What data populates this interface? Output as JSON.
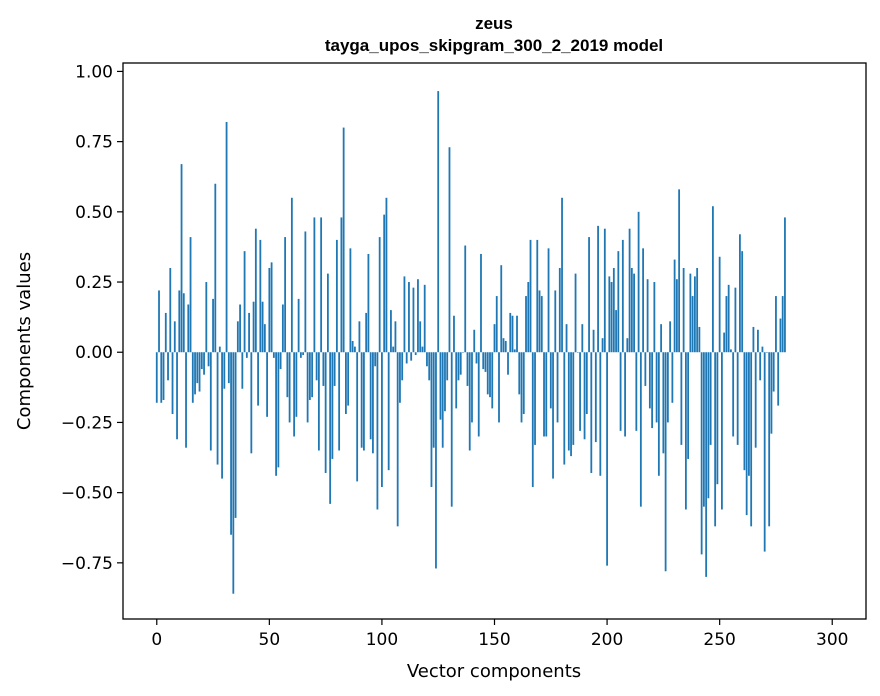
{
  "chart_data": {
    "type": "bar",
    "title": "zeus",
    "subtitle": "tayga_upos_skipgram_300_2_2019 model",
    "xlabel": "Vector components",
    "ylabel": "Components values",
    "xlim": [
      -15,
      315
    ],
    "ylim": [
      -0.95,
      1.03
    ],
    "xticks": [
      0,
      50,
      100,
      150,
      200,
      250,
      300
    ],
    "xtick_labels": [
      "0",
      "50",
      "100",
      "150",
      "200",
      "250",
      "300"
    ],
    "yticks": [
      -0.75,
      -0.5,
      -0.25,
      0.0,
      0.25,
      0.5,
      0.75,
      1.0
    ],
    "ytick_labels": [
      "−0.75",
      "−0.50",
      "−0.25",
      "0.00",
      "0.25",
      "0.50",
      "0.75",
      "1.00"
    ],
    "grid": false,
    "bar_color": "#1f77b4",
    "values": [
      -0.18,
      0.22,
      -0.18,
      -0.17,
      0.14,
      -0.1,
      0.3,
      -0.22,
      0.11,
      -0.31,
      0.22,
      0.67,
      0.21,
      -0.34,
      0.17,
      0.41,
      -0.18,
      -0.15,
      -0.11,
      -0.14,
      -0.06,
      -0.08,
      0.25,
      -0.05,
      -0.35,
      0.19,
      0.6,
      -0.4,
      0.02,
      -0.45,
      -0.13,
      0.82,
      -0.11,
      -0.65,
      -0.86,
      -0.59,
      0.11,
      0.17,
      -0.13,
      0.36,
      -0.02,
      0.14,
      -0.36,
      0.18,
      0.44,
      -0.19,
      0.4,
      0.18,
      0.1,
      -0.23,
      0.3,
      0.32,
      -0.02,
      -0.44,
      -0.41,
      -0.06,
      0.17,
      0.41,
      -0.16,
      -0.25,
      0.55,
      -0.3,
      -0.23,
      0.19,
      -0.02,
      -0.01,
      0.43,
      -0.25,
      -0.17,
      -0.16,
      0.48,
      -0.1,
      -0.35,
      0.48,
      -0.12,
      -0.43,
      0.28,
      -0.54,
      -0.38,
      -0.12,
      0.4,
      -0.35,
      0.48,
      0.8,
      -0.22,
      -0.19,
      0.37,
      0.04,
      0.02,
      -0.46,
      0.11,
      -0.34,
      -0.35,
      0.14,
      0.35,
      -0.31,
      -0.36,
      -0.05,
      -0.56,
      0.41,
      -0.48,
      0.49,
      0.55,
      -0.42,
      0.15,
      0.02,
      0.11,
      -0.62,
      -0.18,
      -0.1,
      0.27,
      -0.04,
      0.25,
      -0.03,
      0.23,
      -0.01,
      0.26,
      0.11,
      0.02,
      0.24,
      -0.05,
      -0.1,
      -0.48,
      -0.34,
      -0.77,
      0.93,
      -0.24,
      -0.34,
      -0.21,
      -0.1,
      0.73,
      -0.55,
      0.13,
      -0.2,
      -0.1,
      -0.08,
      0.0,
      0.38,
      -0.12,
      -0.35,
      -0.25,
      0.08,
      -0.04,
      -0.3,
      0.35,
      -0.06,
      -0.07,
      -0.15,
      -0.16,
      -0.2,
      0.1,
      0.2,
      -0.25,
      0.31,
      0.05,
      0.04,
      -0.08,
      0.14,
      0.13,
      0.01,
      0.13,
      -0.15,
      -0.25,
      -0.22,
      0.2,
      0.25,
      0.4,
      -0.48,
      -0.33,
      0.4,
      0.22,
      0.2,
      -0.3,
      -0.3,
      0.37,
      -0.2,
      -0.45,
      0.22,
      -0.25,
      0.3,
      0.55,
      -0.4,
      0.1,
      -0.35,
      -0.37,
      -0.33,
      0.28,
      0.0,
      -0.28,
      0.1,
      -0.31,
      -0.22,
      0.41,
      -0.43,
      0.08,
      -0.32,
      0.45,
      -0.44,
      0.05,
      0.44,
      -0.76,
      0.27,
      0.25,
      0.3,
      0.15,
      0.36,
      -0.28,
      0.4,
      -0.3,
      0.05,
      0.44,
      0.3,
      0.28,
      -0.28,
      0.5,
      -0.55,
      0.37,
      -0.12,
      0.26,
      -0.2,
      -0.27,
      0.25,
      -0.25,
      -0.44,
      0.1,
      -0.36,
      -0.78,
      -0.25,
      0.11,
      -0.18,
      0.33,
      0.26,
      0.58,
      -0.33,
      0.3,
      -0.56,
      -0.38,
      0.28,
      0.2,
      0.27,
      0.3,
      0.09,
      -0.72,
      -0.55,
      -0.8,
      -0.52,
      -0.33,
      0.52,
      -0.62,
      -0.47,
      0.34,
      -0.56,
      0.07,
      0.2,
      0.24,
      0.01,
      -0.3,
      0.23,
      -0.33,
      0.42,
      0.36,
      -0.42,
      -0.58,
      -0.44,
      -0.62,
      0.09,
      -0.34,
      0.08,
      -0.1,
      0.02,
      -0.71,
      0.0,
      -0.62,
      -0.29,
      -0.14,
      0.2,
      -0.19,
      0.12,
      0.2,
      0.48
    ]
  }
}
